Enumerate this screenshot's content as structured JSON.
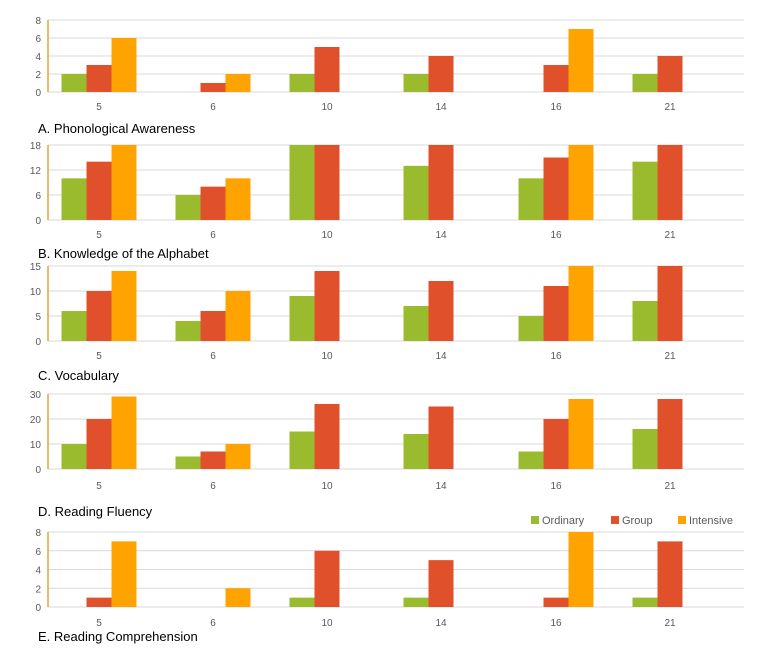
{
  "colors": {
    "ordinary": "#9BBB2F",
    "group": "#E0512B",
    "intensive": "#FFA300",
    "grid": "#D9D9D9",
    "axis": "#E7A23B"
  },
  "legend": {
    "ordinary": "Ordinary",
    "group": "Group",
    "intensive": "Intensive",
    "placement": "above-bottom-chart-right"
  },
  "chart_data": [
    {
      "type": "bar",
      "title": "A.  Phonological Awareness",
      "categories": [
        "5",
        "6",
        "10",
        "14",
        "16",
        "21"
      ],
      "ylim": [
        0,
        8
      ],
      "yticks": [
        0,
        2,
        4,
        6,
        8
      ],
      "series": [
        {
          "name": "Ordinary",
          "values": [
            2,
            0,
            2,
            2,
            0,
            2
          ]
        },
        {
          "name": "Group",
          "values": [
            3,
            1,
            5,
            4,
            3,
            4
          ]
        },
        {
          "name": "Intensive",
          "values": [
            6,
            2,
            0,
            0,
            7,
            0
          ]
        }
      ]
    },
    {
      "type": "bar",
      "title": "B. Knowledge of the Alphabet",
      "categories": [
        "5",
        "6",
        "10",
        "14",
        "16",
        "21"
      ],
      "ylim": [
        0,
        18
      ],
      "yticks": [
        0,
        6,
        12,
        18
      ],
      "series": [
        {
          "name": "Ordinary",
          "values": [
            10,
            6,
            18,
            13,
            10,
            14
          ]
        },
        {
          "name": "Group",
          "values": [
            14,
            8,
            18,
            18,
            15,
            18
          ]
        },
        {
          "name": "Intensive",
          "values": [
            18,
            10,
            0,
            0,
            18,
            0
          ]
        }
      ]
    },
    {
      "type": "bar",
      "title": "C. Vocabulary",
      "categories": [
        "5",
        "6",
        "10",
        "14",
        "16",
        "21"
      ],
      "ylim": [
        0,
        15
      ],
      "yticks": [
        0,
        5,
        10,
        15
      ],
      "series": [
        {
          "name": "Ordinary",
          "values": [
            6,
            4,
            9,
            7,
            5,
            8
          ]
        },
        {
          "name": "Group",
          "values": [
            10,
            6,
            14,
            12,
            11,
            15
          ]
        },
        {
          "name": "Intensive",
          "values": [
            14,
            10,
            0,
            0,
            15,
            0
          ]
        }
      ]
    },
    {
      "type": "bar",
      "title": "D. Reading Fluency",
      "categories": [
        "5",
        "6",
        "10",
        "14",
        "16",
        "21"
      ],
      "ylim": [
        0,
        30
      ],
      "yticks": [
        0,
        10,
        20,
        30
      ],
      "series": [
        {
          "name": "Ordinary",
          "values": [
            10,
            5,
            15,
            14,
            7,
            16
          ]
        },
        {
          "name": "Group",
          "values": [
            20,
            7,
            26,
            25,
            20,
            28
          ]
        },
        {
          "name": "Intensive",
          "values": [
            29,
            10,
            0,
            0,
            28,
            0
          ]
        }
      ]
    },
    {
      "type": "bar",
      "title": "E. Reading Comprehension",
      "categories": [
        "5",
        "6",
        "10",
        "14",
        "16",
        "21"
      ],
      "ylim": [
        0,
        8
      ],
      "yticks": [
        0,
        2,
        4,
        6,
        8
      ],
      "series": [
        {
          "name": "Ordinary",
          "values": [
            0,
            0,
            1,
            1,
            0,
            1
          ]
        },
        {
          "name": "Group",
          "values": [
            1,
            0,
            6,
            5,
            1,
            7
          ]
        },
        {
          "name": "Intensive",
          "values": [
            7,
            2,
            0,
            0,
            8,
            0
          ]
        }
      ]
    }
  ]
}
